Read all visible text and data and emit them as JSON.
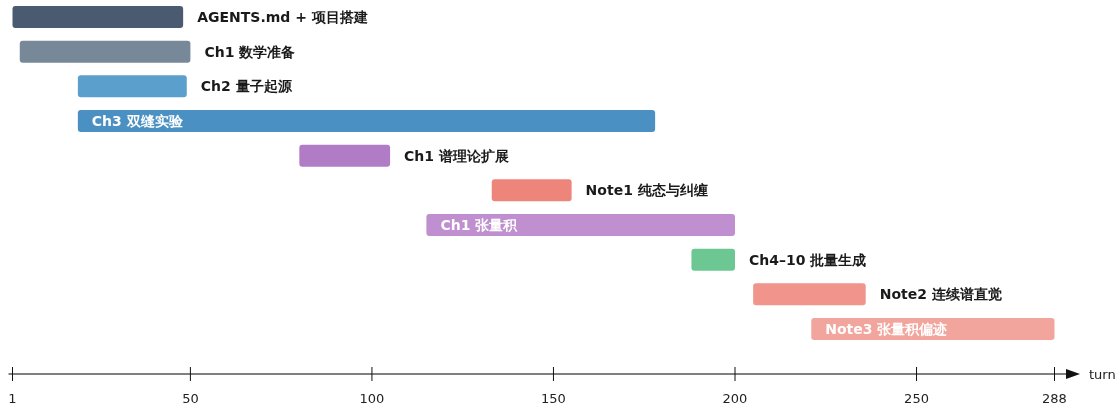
{
  "chart_data": {
    "type": "bar",
    "orientation": "horizontal",
    "xlabel": "turn",
    "categories": [
      "AGENTS.md + 项目搭建",
      "Ch1 数学准备",
      "Ch2 量子起源",
      "Ch3 双缝实验",
      "Ch1 谱理论扩展",
      "Note1 纯态与纠缠",
      "Ch1 张量积",
      "Ch4–10 批量生成",
      "Note2 连续谱直觉",
      "Note3 张量积偏迹"
    ],
    "base": [
      1,
      3,
      19,
      19,
      80,
      133,
      115,
      188,
      205,
      221
    ],
    "values": [
      47,
      47,
      30,
      159,
      25,
      22,
      85,
      12,
      31,
      67
    ],
    "colors": [
      "#4a5a70",
      "#778899",
      "#5b9fcc",
      "#4a90c2",
      "#b07cc6",
      "#ee857a",
      "#bf8fcf",
      "#6cc793",
      "#f0948c",
      "#f2a59c"
    ],
    "xlim": [
      1,
      288
    ],
    "xticks": [
      1,
      50,
      100,
      150,
      200,
      250,
      288
    ]
  }
}
